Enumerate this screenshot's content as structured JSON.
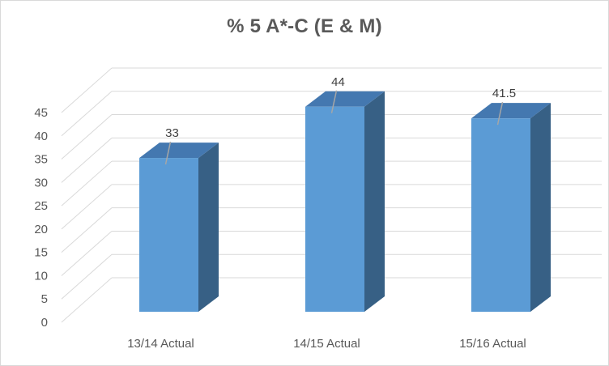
{
  "chart_data": {
    "type": "bar",
    "title": "% 5 A*-C (E & M)",
    "categories": [
      "13/14 Actual",
      "14/15 Actual",
      "15/16 Actual"
    ],
    "values": [
      33,
      44,
      41.5
    ],
    "data_labels": [
      "33",
      "44",
      "41.5"
    ],
    "y_ticks": [
      "0",
      "5",
      "10",
      "15",
      "20",
      "25",
      "30",
      "35",
      "40",
      "45"
    ],
    "ylim": [
      0,
      45
    ],
    "grid": true,
    "legend": "none",
    "style": "3d-column",
    "colors": {
      "bar_front": "#5b9bd5",
      "bar_side": "#376085",
      "bar_top": "#4478b0",
      "gridline": "#d9d9d9",
      "label_leader": "#a6a6a6"
    }
  }
}
